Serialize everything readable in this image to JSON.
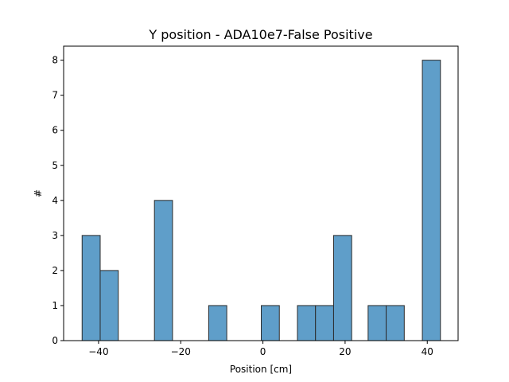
{
  "chart_data": {
    "type": "bar",
    "title": "Y position - ADA10e7-False Positive",
    "xlabel": "Position [cm]",
    "ylabel": "#",
    "xlim": [
      -48.5,
      47.5
    ],
    "ylim": [
      0,
      8.4
    ],
    "xticks": [
      -40,
      -20,
      0,
      20,
      40
    ],
    "xtick_labels": [
      "−40",
      "−20",
      "0",
      "20",
      "40"
    ],
    "yticks": [
      0,
      1,
      2,
      3,
      4,
      5,
      6,
      7,
      8
    ],
    "ytick_labels": [
      "0",
      "1",
      "2",
      "3",
      "4",
      "5",
      "6",
      "7",
      "8"
    ],
    "grid": false,
    "bar_color": "#5f9ec9",
    "edge_color": "#2b2b2b",
    "bins": [
      {
        "x0": -44.0,
        "x1": -39.6,
        "count": 3
      },
      {
        "x0": -39.6,
        "x1": -35.2,
        "count": 2
      },
      {
        "x0": -26.4,
        "x1": -22.0,
        "count": 4
      },
      {
        "x0": -13.2,
        "x1": -8.8,
        "count": 1
      },
      {
        "x0": -0.4,
        "x1": 4.0,
        "count": 1
      },
      {
        "x0": 8.4,
        "x1": 12.8,
        "count": 1
      },
      {
        "x0": 12.8,
        "x1": 17.2,
        "count": 1
      },
      {
        "x0": 17.2,
        "x1": 21.6,
        "count": 3
      },
      {
        "x0": 25.6,
        "x1": 30.0,
        "count": 1
      },
      {
        "x0": 30.0,
        "x1": 34.4,
        "count": 1
      },
      {
        "x0": 38.8,
        "x1": 43.2,
        "count": 8
      }
    ]
  }
}
